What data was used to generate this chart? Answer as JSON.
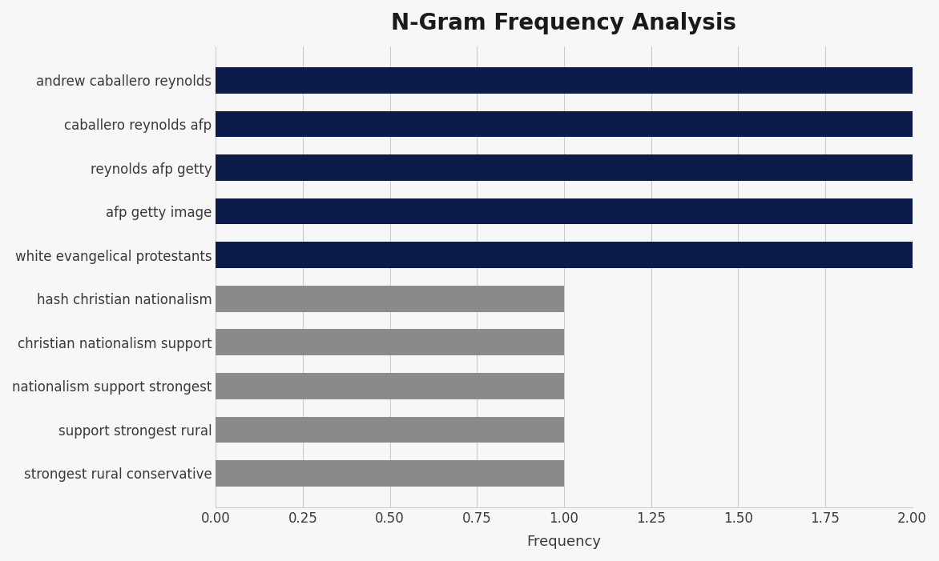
{
  "title": "N-Gram Frequency Analysis",
  "categories": [
    "strongest rural conservative",
    "support strongest rural",
    "nationalism support strongest",
    "christian nationalism support",
    "hash christian nationalism",
    "white evangelical protestants",
    "afp getty image",
    "reynolds afp getty",
    "caballero reynolds afp",
    "andrew caballero reynolds"
  ],
  "values": [
    1,
    1,
    1,
    1,
    1,
    2,
    2,
    2,
    2,
    2
  ],
  "bar_colors": [
    "#8a8a8a",
    "#8a8a8a",
    "#8a8a8a",
    "#8a8a8a",
    "#8a8a8a",
    "#0d1b4b",
    "#0d1b4b",
    "#0d1b4b",
    "#0d1b4b",
    "#0d1b4b"
  ],
  "xlabel": "Frequency",
  "xlim": [
    0,
    2.0
  ],
  "xticks": [
    0.0,
    0.25,
    0.5,
    0.75,
    1.0,
    1.25,
    1.5,
    1.75,
    2.0
  ],
  "xtick_labels": [
    "0.00",
    "0.25",
    "0.50",
    "0.75",
    "1.00",
    "1.25",
    "1.50",
    "1.75",
    "2.00"
  ],
  "background_color": "#f7f7f7",
  "title_fontsize": 20,
  "label_fontsize": 12,
  "tick_fontsize": 12,
  "bar_height": 0.6,
  "xlabel_fontsize": 13
}
